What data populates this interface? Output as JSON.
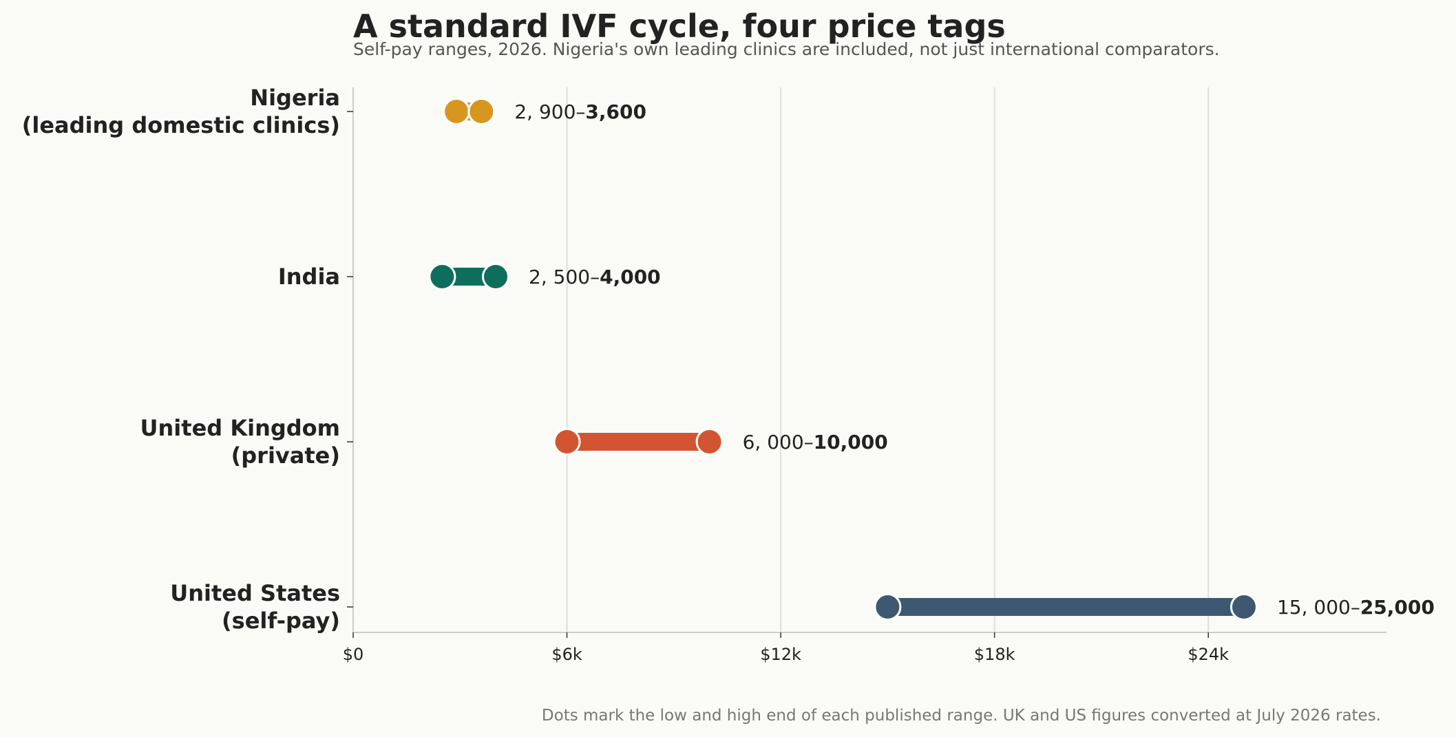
{
  "chart_data": {
    "type": "dumbbell",
    "title": "A standard IVF cycle, four price tags",
    "subtitle": "Self-pay ranges, 2026. Nigeria's own leading clinics are included, not just international comparators.",
    "note": "Dots mark the low and high end of each published range. UK and US figures converted at July 2026 rates.",
    "xlim": [
      0,
      29000
    ],
    "x_ticks": [
      0,
      6000,
      12000,
      18000,
      24000
    ],
    "x_tick_labels": [
      "$0",
      "$6k",
      "$12k",
      "$18k",
      "$24k"
    ],
    "grid": "vertical",
    "rows": [
      {
        "label_lines": [
          "Nigeria",
          "(leading domestic clinics)"
        ],
        "low": 2900,
        "high": 3600,
        "low_label": "2, 900–",
        "high_label": "3,600",
        "color": "#d8961e"
      },
      {
        "label_lines": [
          "India"
        ],
        "low": 2500,
        "high": 4000,
        "low_label": "2, 500–",
        "high_label": "4,000",
        "color": "#0e6e5c"
      },
      {
        "label_lines": [
          "United Kingdom",
          "(private)"
        ],
        "low": 6000,
        "high": 10000,
        "low_label": "6, 000–",
        "high_label": "10,000",
        "color": "#d35432"
      },
      {
        "label_lines": [
          "United States",
          "(self-pay)"
        ],
        "low": 15000,
        "high": 25000,
        "low_label": "15, 000–",
        "high_label": "25,000",
        "color": "#3e5872"
      }
    ]
  }
}
